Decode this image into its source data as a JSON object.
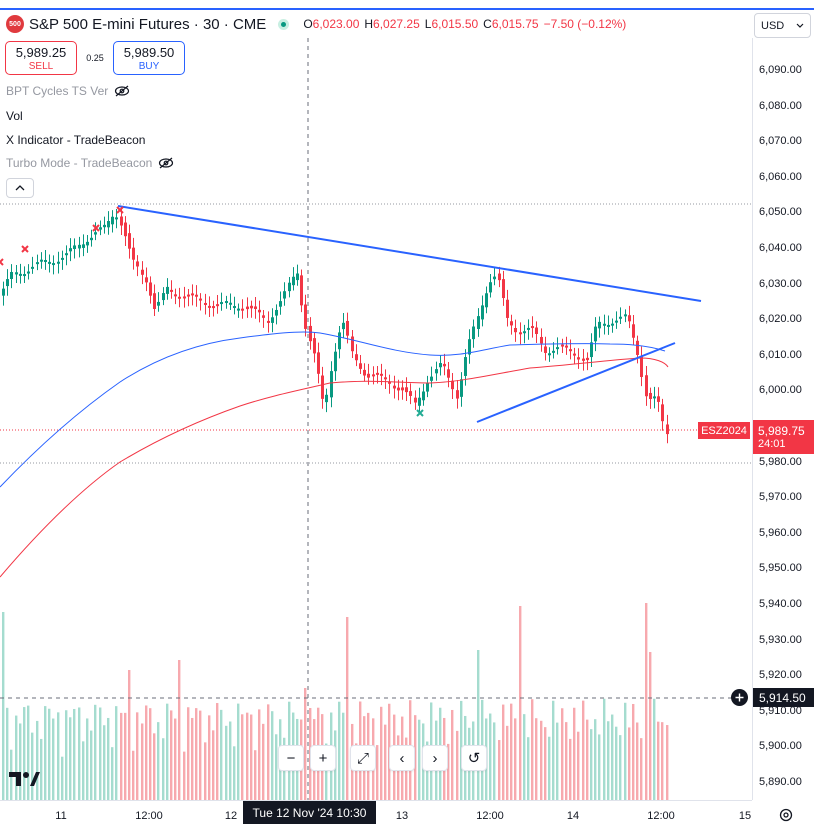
{
  "header": {
    "badge": "500",
    "title": "S&P 500 E-mini Futures · 30 · CME",
    "ohlc": [
      {
        "k": "O",
        "v": "6,023.00"
      },
      {
        "k": "H",
        "v": "6,027.25"
      },
      {
        "k": "L",
        "v": "6,015.50"
      },
      {
        "k": "C",
        "v": "6,015.75"
      }
    ],
    "change": "−7.50 (−0.12%)"
  },
  "trade": {
    "sell_price": "5,989.25",
    "sell_label": "SELL",
    "spread": "0.25",
    "buy_price": "5,989.50",
    "buy_label": "BUY"
  },
  "indicators": [
    {
      "label": "BPT Cycles TS Ver",
      "hidden": true
    },
    {
      "label": "Vol",
      "hidden": false
    },
    {
      "label": "X Indicator - TradeBeacon",
      "hidden": false
    },
    {
      "label": "Turbo Mode - TradeBeacon",
      "hidden": true
    }
  ],
  "currency": "USD",
  "price_axis": [
    "6,090.00",
    "6,080.00",
    "6,070.00",
    "6,060.00",
    "6,050.00",
    "6,040.00",
    "6,030.00",
    "6,020.00",
    "6,010.00",
    "6,000.00",
    "5,980.00",
    "5,970.00",
    "5,960.00",
    "5,950.00",
    "5,940.00",
    "5,930.00",
    "5,920.00",
    "5,910.00",
    "5,900.00",
    "5,890.00"
  ],
  "time_axis": [
    "11",
    "12:00",
    "12",
    "13",
    "12:00",
    "14",
    "12:00",
    "15"
  ],
  "symbol_tag": "ESZ2024",
  "last_price": "5,989.75",
  "countdown": "24:01",
  "crosshair_price": "5,914.50",
  "crosshair_time": "Tue 12 Nov '24   10:30",
  "colors": {
    "up": "#089981",
    "down": "#f23645",
    "trendline": "#2962ff",
    "ma_blue": "#2962ff",
    "ma_red": "#f23645"
  },
  "nav": [
    {
      "name": "zoom-out-button",
      "glyph": "−"
    },
    {
      "name": "zoom-in-button",
      "glyph": "+"
    },
    {
      "name": "reset-scale-button",
      "glyph": "⤢"
    },
    {
      "name": "scroll-left-button",
      "glyph": "‹"
    },
    {
      "name": "scroll-right-button",
      "glyph": "›"
    },
    {
      "name": "reset-chart-button",
      "glyph": "↺"
    }
  ]
}
